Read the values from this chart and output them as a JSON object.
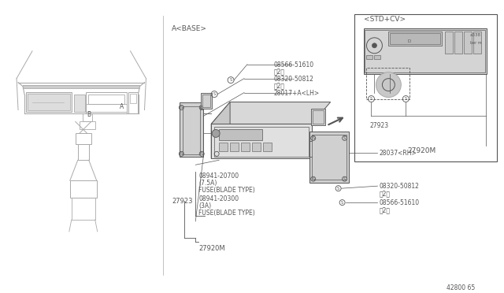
{
  "bg_color": "#ffffff",
  "lc": "#aaaaaa",
  "dc": "#555555",
  "fs": 5.5,
  "part_number": "42800 65",
  "labels": {
    "a_base": "A<BASE>",
    "std_cv": "<STD+CV>",
    "screw1_num": "08566-51610",
    "screw1_qty": "（2）",
    "screw2_num": "08320-50812",
    "screw2_qty": "（2）",
    "lh_bracket": "28017+A<LH>",
    "rh_bracket": "28037<RH>",
    "screw3_num": "08320-50812",
    "screw3_qty": "（2）",
    "screw4_num": "08566-51610",
    "screw4_qty": "（2）",
    "fuse1_num": "08941-20700",
    "fuse1_amp": "(7.5A)",
    "fuse1_type": "FUSE(BLADE TYPE)",
    "fuse2_num": "08941-20300",
    "fuse2_amp": "(3A)",
    "fuse2_type": "FUSE(BLADE TYPE)",
    "ref_27923": "27923",
    "ref_27920M": "27920M",
    "ref_27923_inset": "27923",
    "ref_27920M_inset": "27920M",
    "label_B": "B",
    "label_A": "A"
  }
}
